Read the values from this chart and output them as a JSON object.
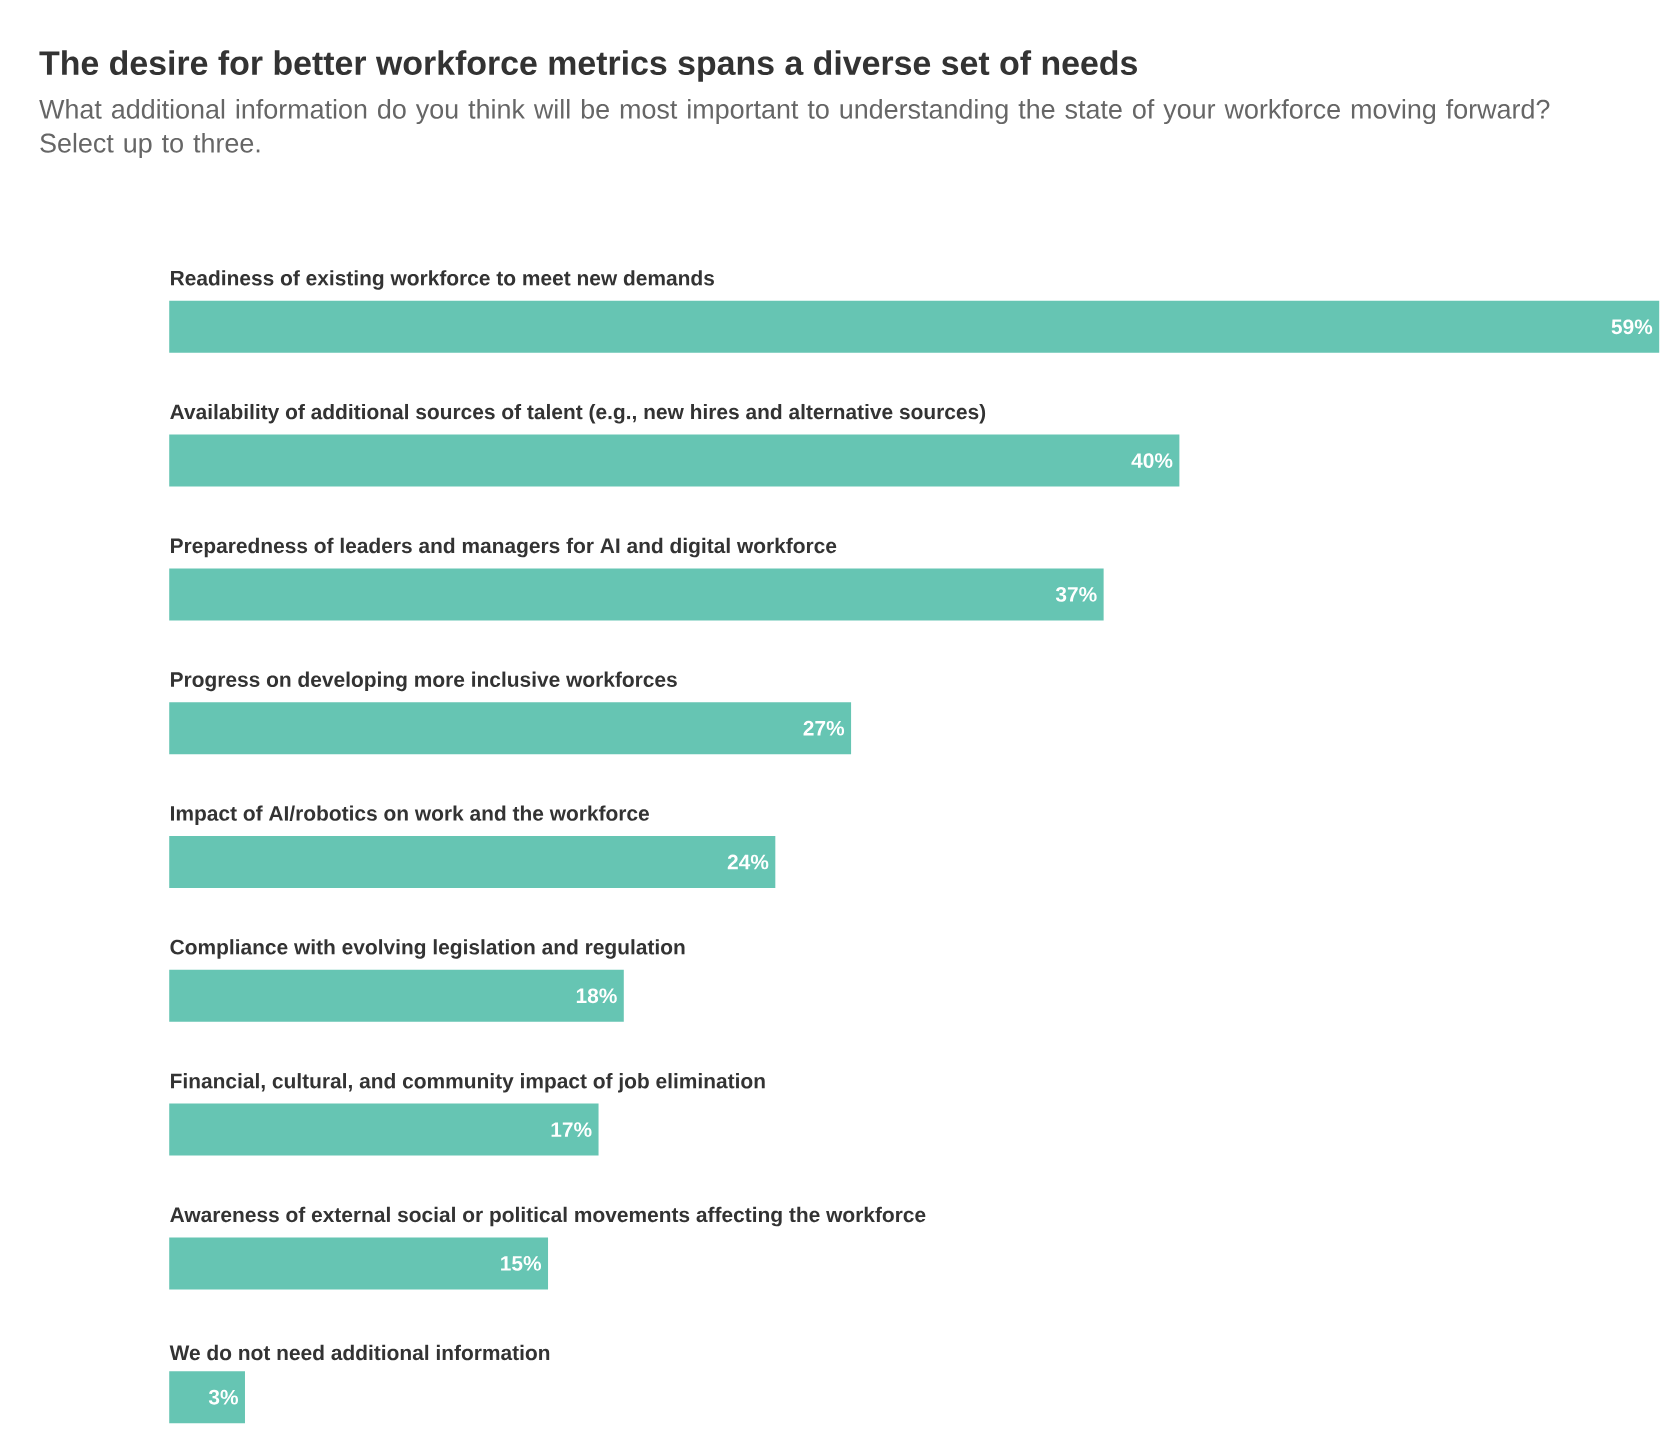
{
  "chart_data": {
    "type": "bar",
    "orientation": "horizontal",
    "title": "The desire for better workforce metrics spans a diverse set of needs",
    "subtitle": "What additional information do you think will be most important to understanding the state of your workforce moving forward? Select up to three.",
    "categories": [
      "Readiness of existing workforce to meet new demands",
      "Availability of additional sources of talent (e.g., new hires and alternative sources)",
      "Preparedness of leaders and managers for AI and digital workforce",
      "Progress on developing more inclusive workforces",
      "Impact of AI/robotics on work and the workforce",
      "Compliance with evolving legislation and regulation",
      "Financial, cultural, and community impact of job elimination",
      "Awareness of external social or political movements affecting the workforce",
      "We do not need additional information"
    ],
    "values": [
      59,
      40,
      37,
      27,
      24,
      18,
      17,
      15,
      3
    ],
    "value_labels": [
      "59%",
      "40%",
      "37%",
      "27%",
      "24%",
      "18%",
      "17%",
      "15%",
      "3%"
    ],
    "color": "#66c5b3"
  }
}
